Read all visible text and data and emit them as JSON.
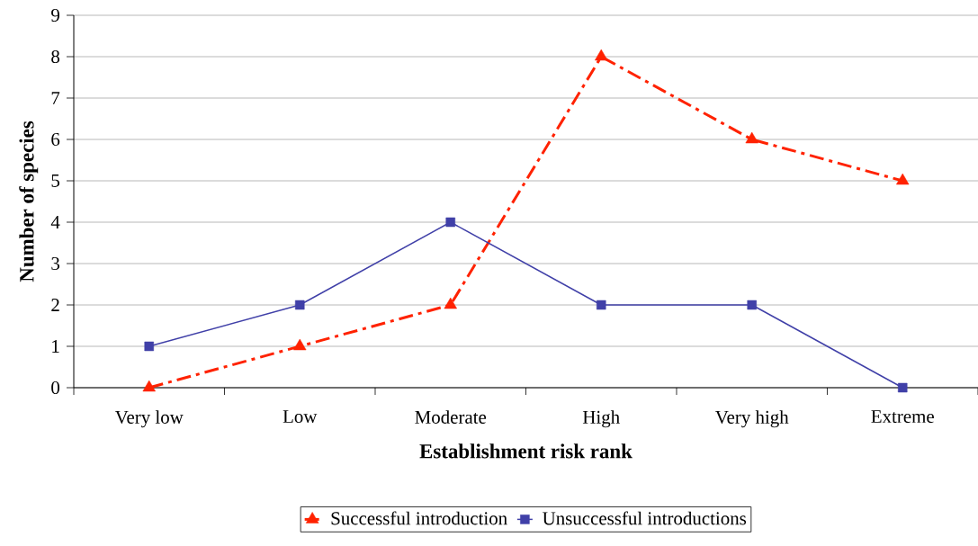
{
  "chart_data": {
    "type": "line",
    "xlabel": "Establishment risk rank",
    "ylabel": "Number of species",
    "categories": [
      "Very low",
      "Low",
      "Moderate",
      "High",
      "Very high",
      "Extreme"
    ],
    "series": [
      {
        "name": "Successful introduction",
        "color": "#ff2200",
        "values": [
          0,
          1,
          2,
          8,
          6,
          5
        ],
        "marker": "triangle",
        "line_style": "dashed"
      },
      {
        "name": "Unsuccessful introductions",
        "color": "#4040a8",
        "values": [
          1,
          2,
          4,
          2,
          2,
          0
        ],
        "marker": "square",
        "line_style": "solid"
      }
    ],
    "ylim": [
      0,
      9
    ],
    "yticks": [
      0,
      1,
      2,
      3,
      4,
      5,
      6,
      7,
      8,
      9
    ],
    "grid": "y",
    "legend": "bottom"
  }
}
